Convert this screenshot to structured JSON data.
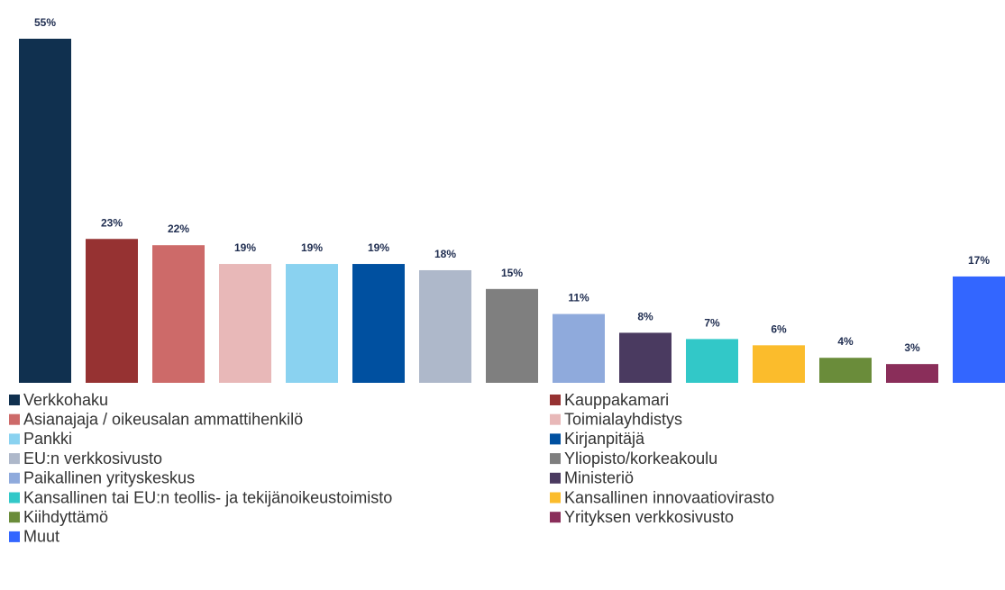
{
  "chart_data": {
    "type": "bar",
    "categories": [
      "Verkkohaku",
      "Kauppakamari",
      "Asianajaja / oikeusalan ammattihenkilö",
      "Toimialayhdistys",
      "Pankki",
      "Kirjanpitäjä",
      "EU:n verkkosivusto",
      "Yliopisto/korkeakoulu",
      "Paikallinen yrityskeskus",
      "Ministeriö",
      "Kansallinen tai EU:n teollis- ja tekijänoikeustoimisto",
      "Kansallinen innovaatiovirasto",
      "Kiihdyttämö",
      "Yrityksen verkkosivusto",
      "Muut"
    ],
    "values": [
      55,
      23,
      22,
      19,
      19,
      19,
      18,
      15,
      11,
      8,
      7,
      6,
      4,
      3,
      17
    ],
    "value_labels": [
      "55%",
      "23%",
      "22%",
      "19%",
      "19%",
      "19%",
      "18%",
      "15%",
      "11%",
      "8%",
      "7%",
      "6%",
      "4%",
      "3%",
      "17%"
    ],
    "colors": [
      "#10304f",
      "#963232",
      "#cd6a69",
      "#e8b8b8",
      "#8ad2f0",
      "#0050a0",
      "#aeb8ca",
      "#7f7f7f",
      "#8faadc",
      "#4a3a60",
      "#32c8c8",
      "#fbbc2c",
      "#6a8c3a",
      "#8a2e5a",
      "#3366ff"
    ],
    "legend": {
      "columns": 2
    }
  }
}
